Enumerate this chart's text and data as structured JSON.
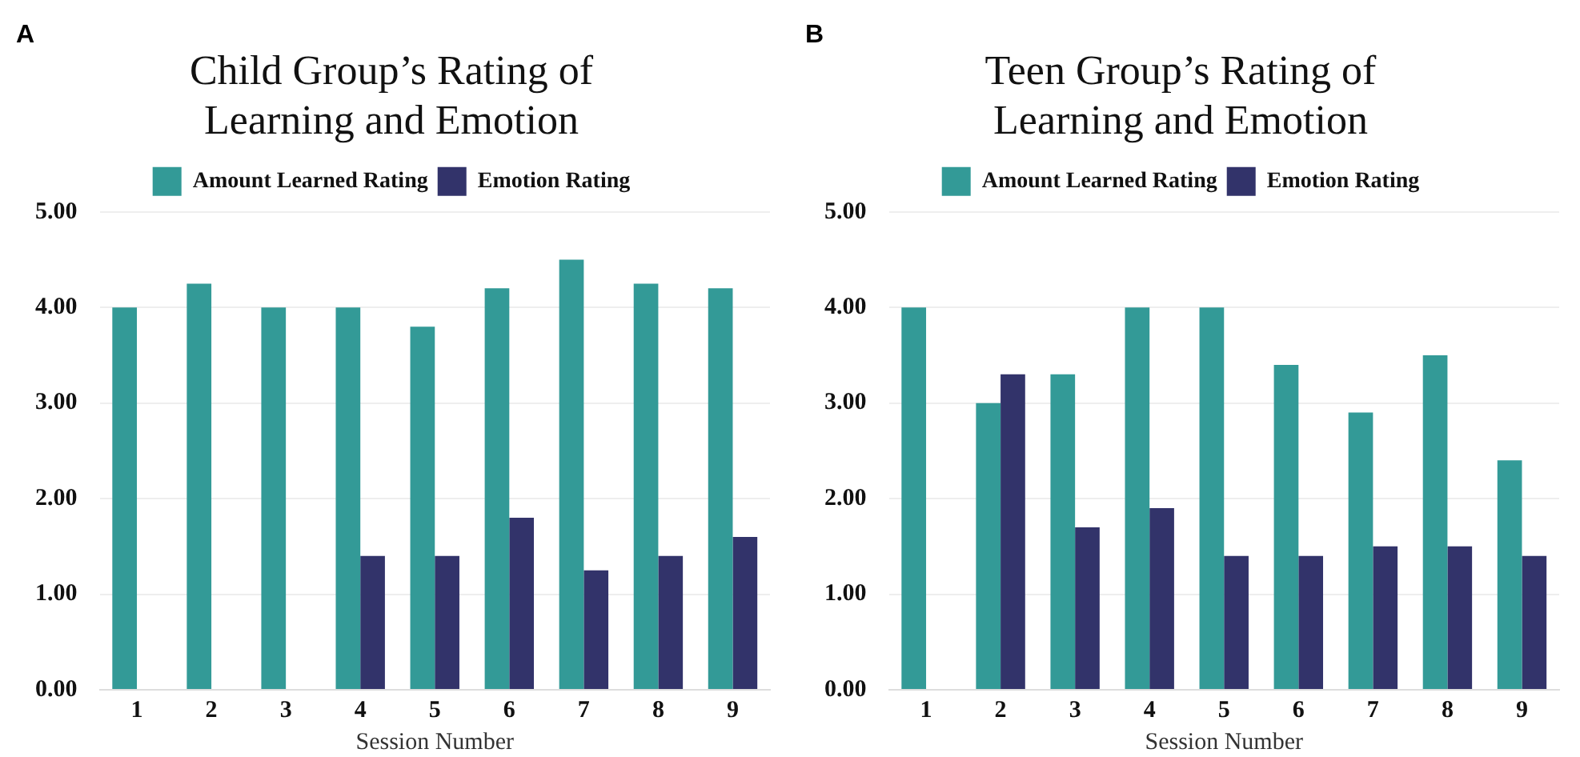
{
  "chart_data": [
    {
      "type": "bar",
      "title": "Child Group’s Rating of Learning and Emotion",
      "annotations": [
        "A"
      ],
      "xlabel": "Session Number",
      "categories": [
        "1",
        "2",
        "3",
        "4",
        "5",
        "6",
        "7",
        "8",
        "9"
      ],
      "series": [
        {
          "name": "Amount Learned Rating",
          "color": "#339a97",
          "values": [
            4.0,
            4.25,
            4.0,
            4.0,
            3.8,
            4.2,
            4.5,
            4.25,
            4.2
          ]
        },
        {
          "name": "Emotion Rating",
          "color": "#32336a",
          "values": [
            null,
            null,
            null,
            1.4,
            1.4,
            1.8,
            1.25,
            1.4,
            1.6
          ]
        }
      ],
      "ylim": [
        0,
        5
      ],
      "yticks": [
        {
          "value": 0,
          "label": "0.00"
        },
        {
          "value": 1,
          "label": "1.00"
        },
        {
          "value": 2,
          "label": "2.00"
        },
        {
          "value": 3,
          "label": "3.00"
        },
        {
          "value": 4,
          "label": "4.00"
        },
        {
          "value": 5,
          "label": "5.00"
        }
      ],
      "grid": "y",
      "legend": "top"
    },
    {
      "type": "bar",
      "title": "Teen Group’s Rating of Learning and Emotion",
      "annotations": [
        "B"
      ],
      "xlabel": "Session Number",
      "categories": [
        "1",
        "2",
        "3",
        "4",
        "5",
        "6",
        "7",
        "8",
        "9"
      ],
      "series": [
        {
          "name": "Amount Learned Rating",
          "color": "#339a97",
          "values": [
            4.0,
            3.0,
            3.3,
            4.0,
            4.0,
            3.4,
            2.9,
            3.5,
            2.4
          ]
        },
        {
          "name": "Emotion Rating",
          "color": "#32336a",
          "values": [
            null,
            3.3,
            1.7,
            1.9,
            1.4,
            1.4,
            1.5,
            1.5,
            1.4
          ]
        }
      ],
      "ylim": [
        0,
        5
      ],
      "yticks": [
        {
          "value": 0,
          "label": "0.00"
        },
        {
          "value": 1,
          "label": "1.00"
        },
        {
          "value": 2,
          "label": "2.00"
        },
        {
          "value": 3,
          "label": "3.00"
        },
        {
          "value": 4,
          "label": "4.00"
        },
        {
          "value": 5,
          "label": "5.00"
        }
      ],
      "grid": "y",
      "legend": "top"
    }
  ]
}
